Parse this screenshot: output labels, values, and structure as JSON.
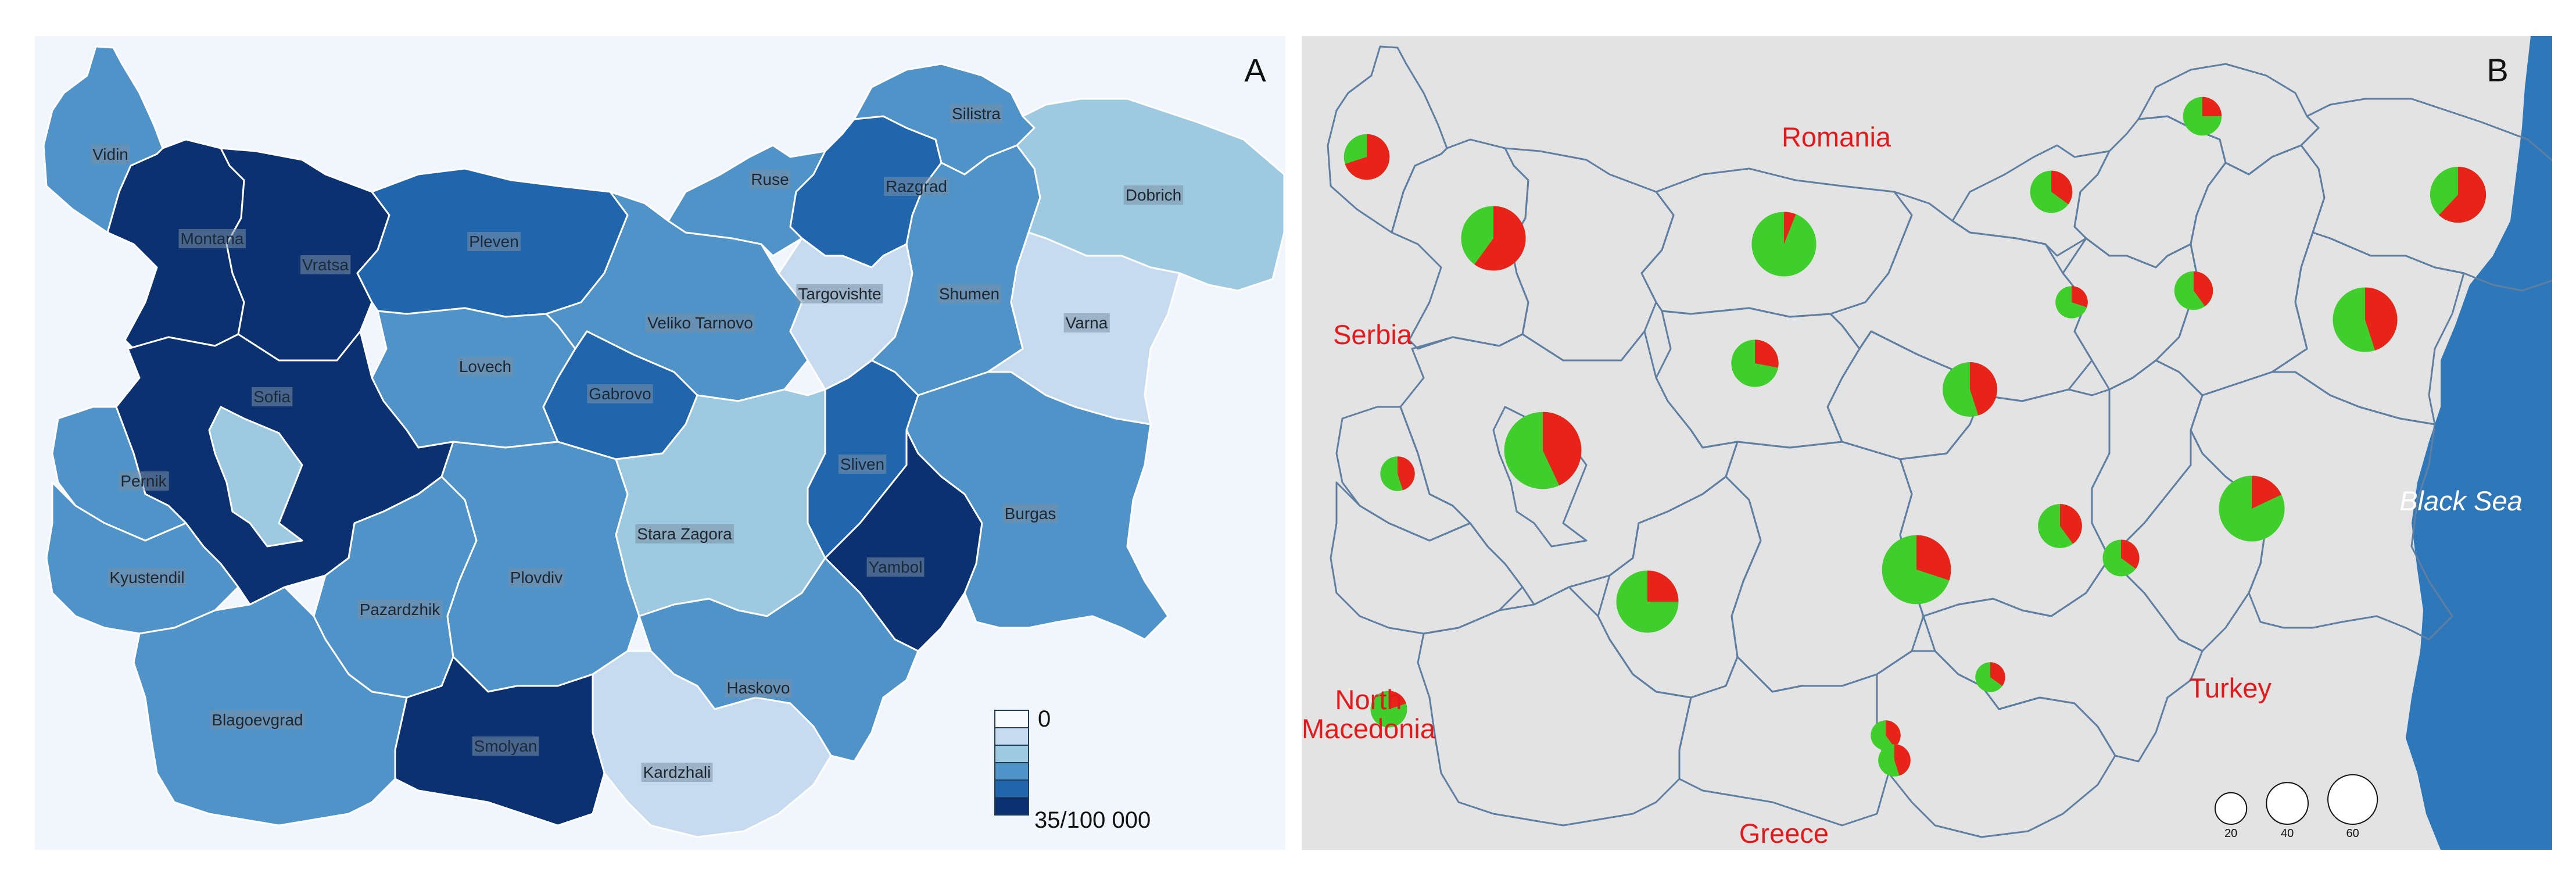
{
  "panel_a": {
    "letter": "A",
    "regions": [
      {
        "key": "vidin",
        "label": "Vidin",
        "level": 3
      },
      {
        "key": "montana",
        "label": "Montana",
        "level": 5
      },
      {
        "key": "vratsa",
        "label": "Vratsa",
        "level": 5
      },
      {
        "key": "pleven",
        "label": "Pleven",
        "level": 4
      },
      {
        "key": "lovech",
        "label": "Lovech",
        "level": 3
      },
      {
        "key": "veliko",
        "label": "Veliko Tarnovo",
        "level": 3
      },
      {
        "key": "gabrovo",
        "label": "Gabrovo",
        "level": 4
      },
      {
        "key": "ruse",
        "label": "Ruse",
        "level": 3
      },
      {
        "key": "razgrad",
        "label": "Razgrad",
        "level": 4
      },
      {
        "key": "silistra",
        "label": "Silistra",
        "level": 3
      },
      {
        "key": "targovishte",
        "label": "Targovishte",
        "level": 1
      },
      {
        "key": "shumen",
        "label": "Shumen",
        "level": 3
      },
      {
        "key": "dobrich",
        "label": "Dobrich",
        "level": 2
      },
      {
        "key": "varna",
        "label": "Varna",
        "level": 1
      },
      {
        "key": "sofia",
        "label": "Sofia",
        "level": 5
      },
      {
        "key": "sofiacity",
        "label": "",
        "level": 2
      },
      {
        "key": "pernik",
        "label": "Pernik",
        "level": 3
      },
      {
        "key": "kyustendil",
        "label": "Kyustendil",
        "level": 3
      },
      {
        "key": "pazardzhik",
        "label": "Pazardzhik",
        "level": 3
      },
      {
        "key": "plovdiv",
        "label": "Plovdiv",
        "level": 3
      },
      {
        "key": "starazagora",
        "label": "Stara Zagora",
        "level": 2
      },
      {
        "key": "sliven",
        "label": "Sliven",
        "level": 4
      },
      {
        "key": "yambol",
        "label": "Yambol",
        "level": 5
      },
      {
        "key": "burgas",
        "label": "Burgas",
        "level": 3
      },
      {
        "key": "haskovo",
        "label": "Haskovo",
        "level": 3
      },
      {
        "key": "kardzhali",
        "label": "Kardzhali",
        "level": 1
      },
      {
        "key": "smolyan",
        "label": "Smolyan",
        "level": 5
      },
      {
        "key": "blagoevgrad",
        "label": "Blagoevgrad",
        "level": 3
      }
    ],
    "legend": {
      "min_label": "0",
      "max_label": "35/100 000",
      "colors": [
        "#f7fbff",
        "#c6dbef",
        "#9ecae1",
        "#4f93c8",
        "#2166ac",
        "#0b3170"
      ]
    }
  },
  "panel_b": {
    "letter": "B",
    "countries": [
      "Romania",
      "Serbia",
      "North",
      "Macedonia",
      "Turkey",
      "Greece"
    ],
    "sea_label": "Black Sea",
    "series_colors": {
      "red": "#e8231a",
      "green": "#3fce2c"
    },
    "pies": [
      {
        "key": "vidin",
        "total": 14,
        "red_share": 0.7
      },
      {
        "key": "montana",
        "total": 28,
        "red_share": 0.6
      },
      {
        "key": "pleven",
        "total": 28,
        "red_share": 0.06
      },
      {
        "key": "ruse",
        "total": 12,
        "red_share": 0.35
      },
      {
        "key": "silistra",
        "total": 10,
        "red_share": 0.25
      },
      {
        "key": "dobrich",
        "total": 21,
        "red_share": 0.62
      },
      {
        "key": "lovech",
        "total": 15,
        "red_share": 0.28
      },
      {
        "key": "veliko",
        "total": 20,
        "red_share": 0.45
      },
      {
        "key": "razgrad",
        "total": 7,
        "red_share": 0.3
      },
      {
        "key": "shumen",
        "total": 10,
        "red_share": 0.4
      },
      {
        "key": "varna",
        "total": 28,
        "red_share": 0.45
      },
      {
        "key": "sofiacity",
        "total": 40,
        "red_share": 0.43
      },
      {
        "key": "pernik",
        "total": 8,
        "red_share": 0.45
      },
      {
        "key": "plovdiv",
        "total": 32,
        "red_share": 0.3
      },
      {
        "key": "starazagora",
        "total": 13,
        "red_share": 0.4
      },
      {
        "key": "burgas",
        "total": 29,
        "red_share": 0.18
      },
      {
        "key": "yambol",
        "total": 9,
        "red_share": 0.35
      },
      {
        "key": "pazardzhik",
        "total": 26,
        "red_share": 0.25
      },
      {
        "key": "kyustendil",
        "total": 9,
        "red_share": 0.2
      },
      {
        "key": "haskovo",
        "total": 6,
        "red_share": 0.35
      },
      {
        "key": "smolyan",
        "total": 6,
        "red_share": 0.4
      },
      {
        "key": "kardzhali",
        "total": 7,
        "red_share": 0.45
      }
    ],
    "size_legend": [
      {
        "value": 20,
        "label": "20"
      },
      {
        "value": 40,
        "label": "40"
      },
      {
        "value": 60,
        "label": "60"
      }
    ]
  }
}
